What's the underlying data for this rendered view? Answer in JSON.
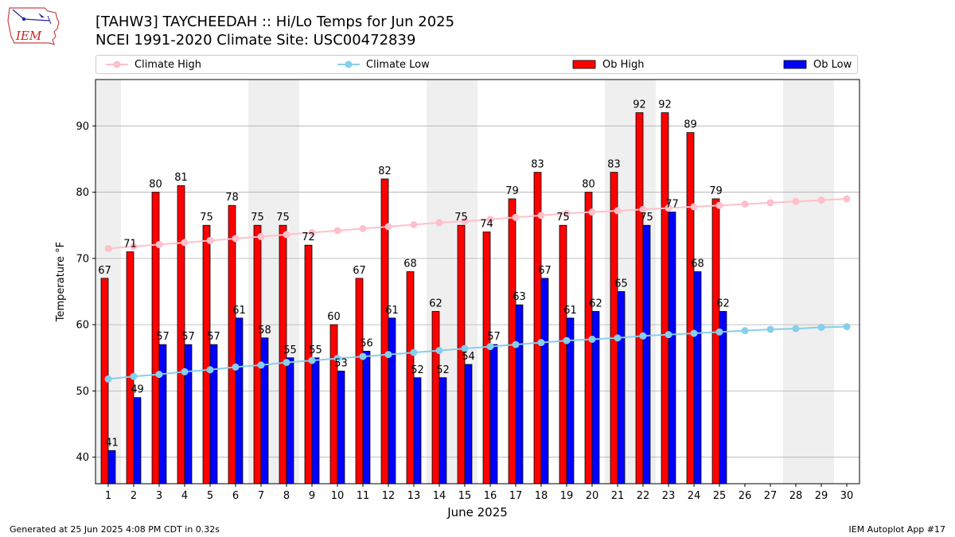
{
  "header": {
    "title_line1": "[TAHW3] TAYCHEEDAH :: Hi/Lo Temps for Jun 2025",
    "title_line2": "NCEI 1991-2020 Climate Site: USC00472839",
    "logo_text": "IEM"
  },
  "legend": {
    "placement": "top",
    "items": [
      {
        "label": "Climate High",
        "color": "#ffc0cb",
        "kind": "line-marker"
      },
      {
        "label": "Climate Low",
        "color": "#87ceeb",
        "kind": "line-marker"
      },
      {
        "label": "Ob High",
        "color": "#ff0000",
        "kind": "bar"
      },
      {
        "label": "Ob Low",
        "color": "#0000ff",
        "kind": "bar"
      }
    ]
  },
  "footer": {
    "left": "Generated at 25 Jun 2025 4:08 PM CDT in 0.32s",
    "right": "IEM Autoplot App #17"
  },
  "chart_data": {
    "type": "bar",
    "xlabel": "June 2025",
    "ylabel": "Temperature °F",
    "ylim": [
      36,
      97
    ],
    "xlim": [
      0.5,
      30.5
    ],
    "yticks": [
      40,
      50,
      60,
      70,
      80,
      90
    ],
    "grid": "horizontal",
    "weekend_shading": [
      [
        0.5,
        1.5
      ],
      [
        6.5,
        8.5
      ],
      [
        13.5,
        15.5
      ],
      [
        20.5,
        22.5
      ],
      [
        27.5,
        29.5
      ]
    ],
    "days": [
      1,
      2,
      3,
      4,
      5,
      6,
      7,
      8,
      9,
      10,
      11,
      12,
      13,
      14,
      15,
      16,
      17,
      18,
      19,
      20,
      21,
      22,
      23,
      24,
      25,
      26,
      27,
      28,
      29,
      30
    ],
    "series": [
      {
        "name": "Ob High",
        "type": "bar",
        "color": "#ff0000",
        "values": [
          67,
          71,
          80,
          81,
          75,
          78,
          75,
          75,
          72,
          60,
          67,
          82,
          68,
          62,
          75,
          74,
          79,
          83,
          75,
          80,
          83,
          92,
          92,
          89,
          79
        ]
      },
      {
        "name": "Ob Low",
        "type": "bar",
        "color": "#0000ff",
        "values": [
          41,
          49,
          57,
          57,
          57,
          61,
          58,
          55,
          55,
          53,
          56,
          61,
          52,
          52,
          54,
          57,
          63,
          67,
          61,
          62,
          65,
          75,
          77,
          68,
          62
        ]
      },
      {
        "name": "Climate High",
        "type": "line",
        "color": "#ffc0cb",
        "values": [
          71.5,
          71.8,
          72.1,
          72.4,
          72.7,
          73.0,
          73.3,
          73.6,
          73.9,
          74.2,
          74.5,
          74.8,
          75.1,
          75.4,
          75.6,
          75.9,
          76.2,
          76.5,
          76.8,
          77.0,
          77.2,
          77.4,
          77.6,
          77.8,
          78.0,
          78.2,
          78.4,
          78.6,
          78.8,
          79.0
        ]
      },
      {
        "name": "Climate Low",
        "type": "line",
        "color": "#87ceeb",
        "values": [
          51.8,
          52.2,
          52.5,
          52.9,
          53.2,
          53.6,
          53.9,
          54.3,
          54.6,
          54.9,
          55.2,
          55.5,
          55.8,
          56.1,
          56.4,
          56.7,
          57.0,
          57.3,
          57.6,
          57.8,
          58.0,
          58.3,
          58.5,
          58.7,
          58.9,
          59.1,
          59.3,
          59.4,
          59.6,
          59.7
        ]
      }
    ]
  }
}
